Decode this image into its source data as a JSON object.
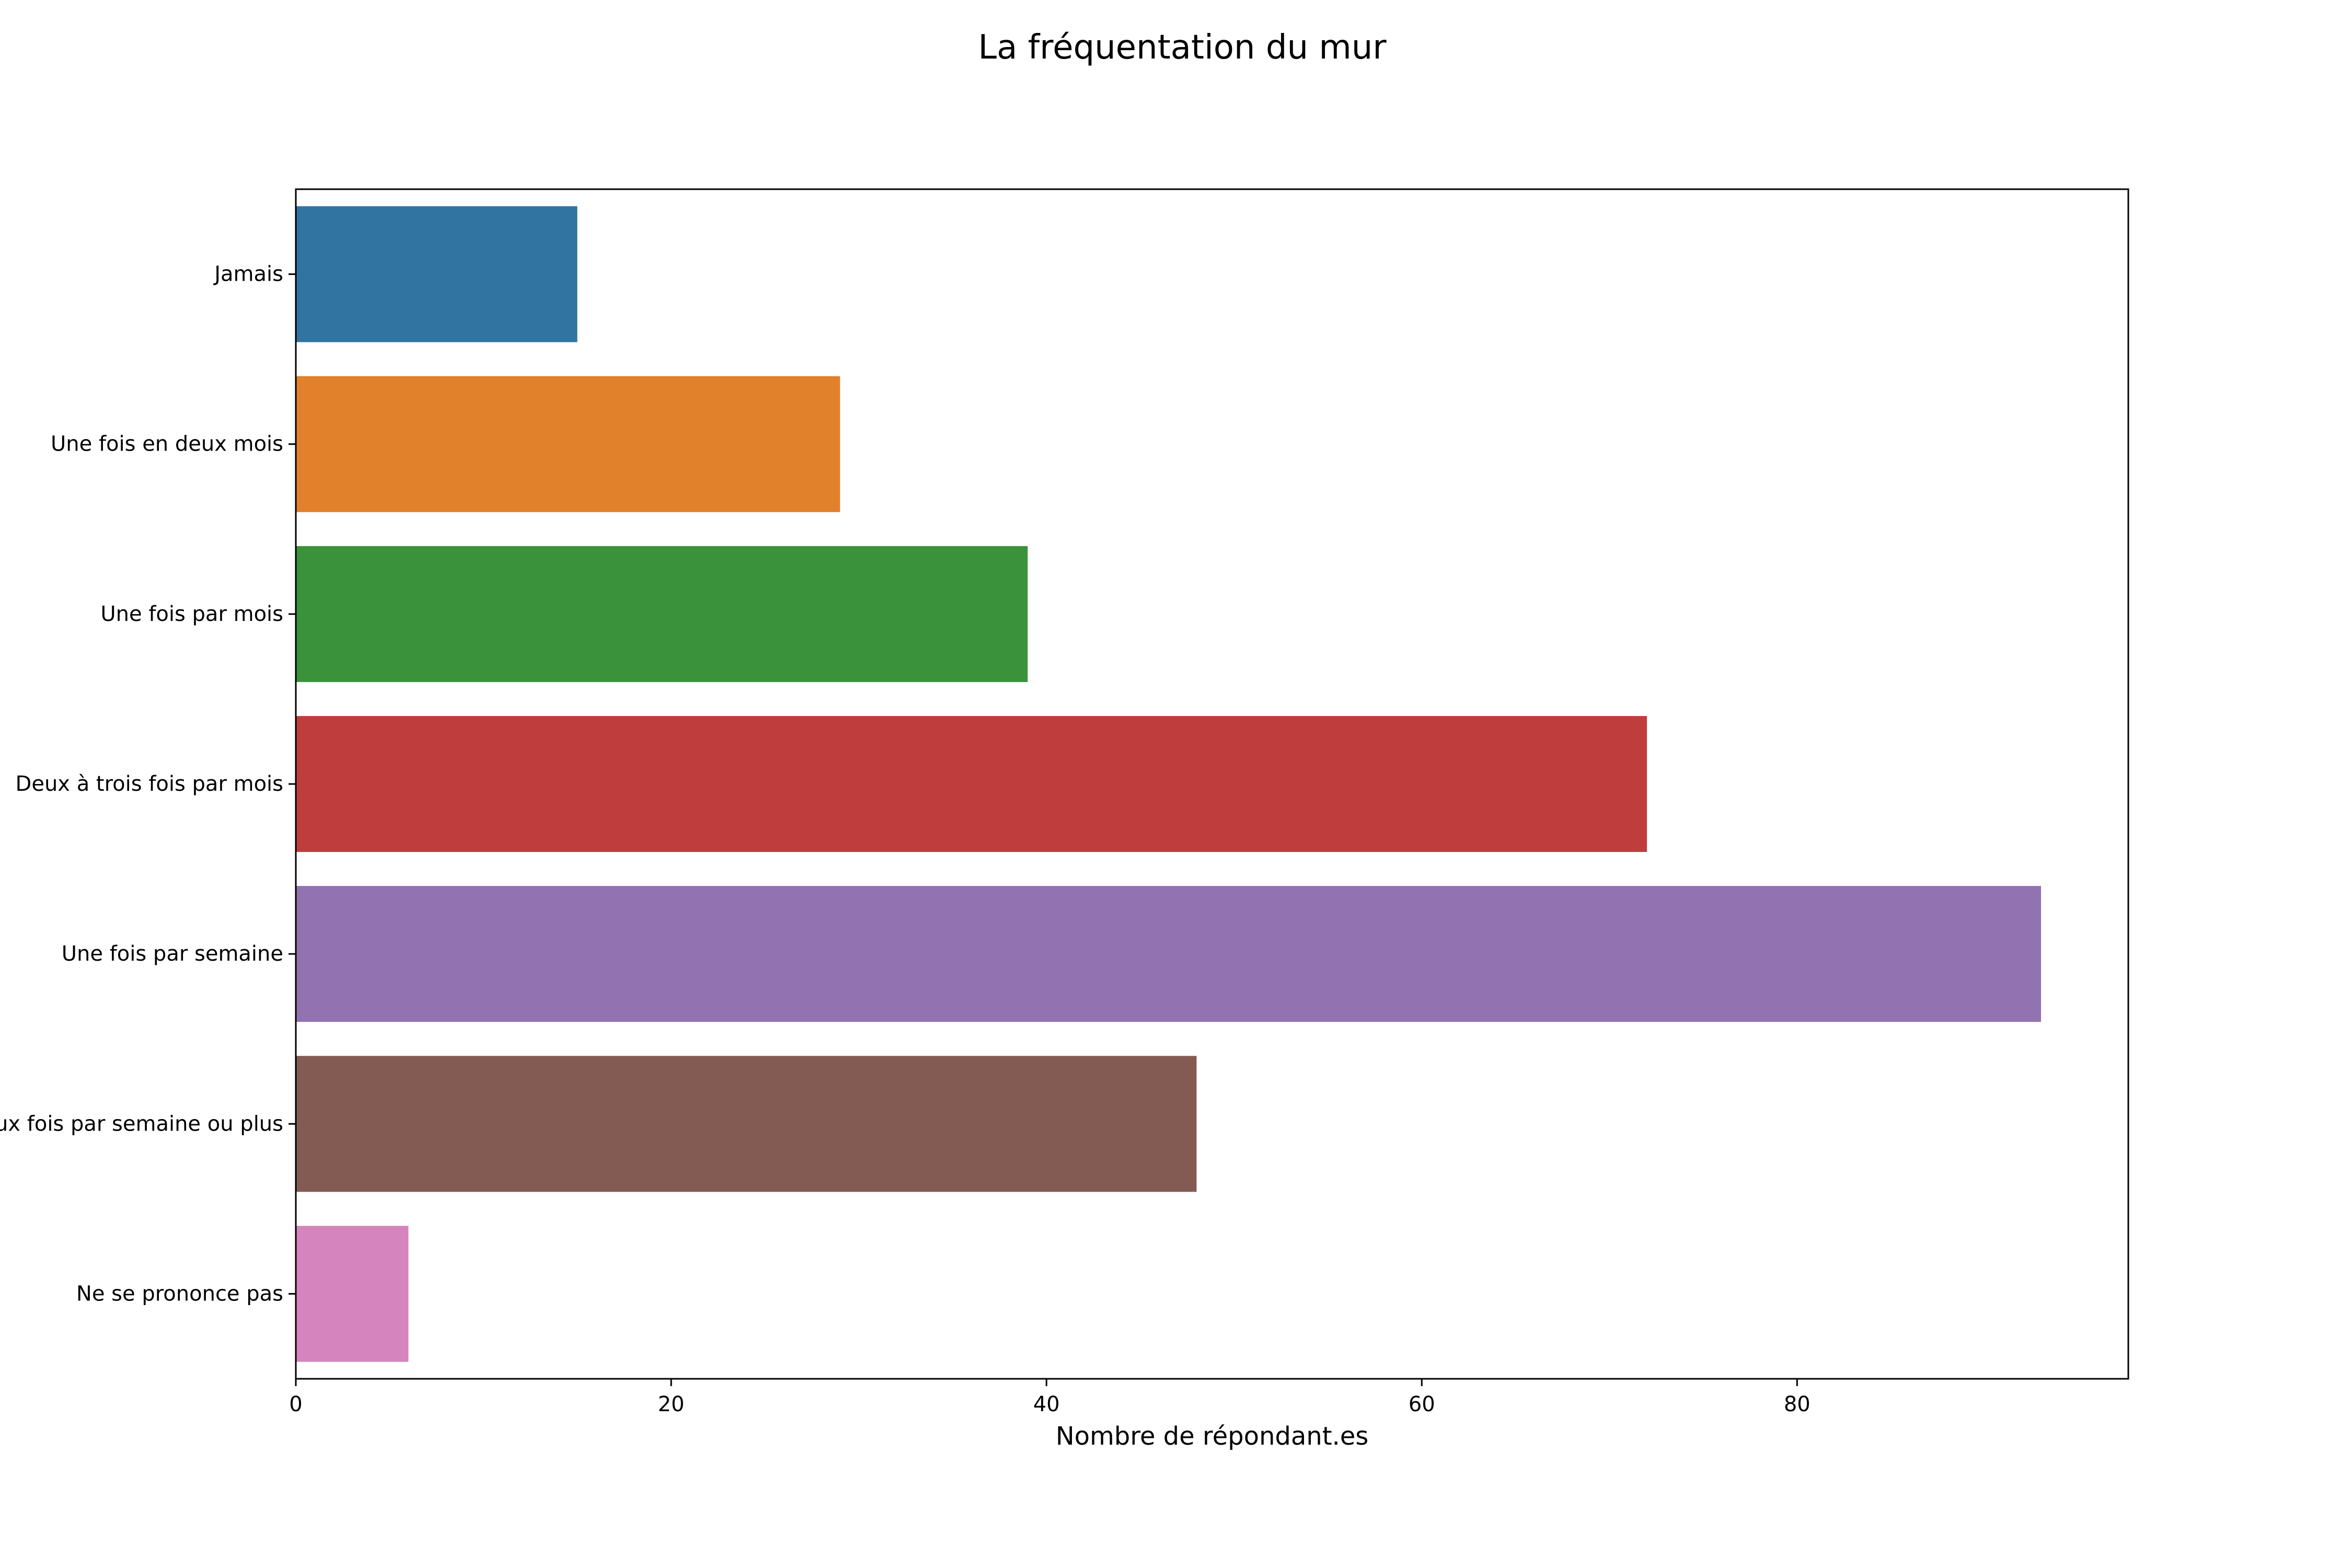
{
  "chart_data": {
    "type": "bar",
    "orientation": "horizontal",
    "title": "La fréquentation du mur",
    "xlabel": "Nombre de répondant.es",
    "ylabel": "",
    "categories": [
      "Jamais",
      "Une fois en deux mois",
      "Une fois par mois",
      "Deux à trois fois par mois",
      "Une fois par semaine",
      "Deux fois par semaine ou plus",
      "Ne se prononce pas"
    ],
    "values": [
      15,
      29,
      39,
      72,
      93,
      48,
      6
    ],
    "colors": [
      "#3274a1",
      "#e1812c",
      "#3a923a",
      "#c03d3e",
      "#9372b2",
      "#845b53",
      "#d684bd"
    ],
    "xlim": [
      0,
      97.65
    ],
    "xticks": [
      0,
      20,
      40,
      60,
      80
    ],
    "grid": false,
    "legend": "none"
  }
}
